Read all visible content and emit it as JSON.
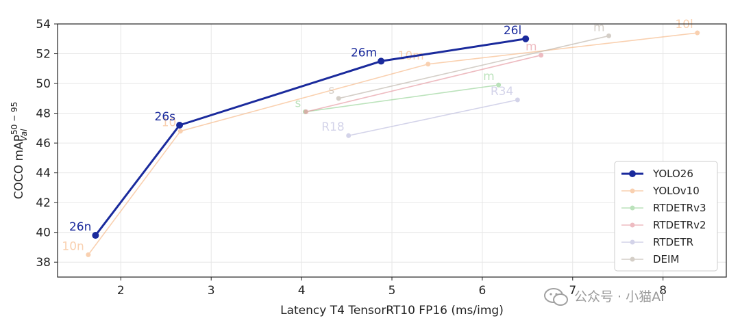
{
  "watermark": {
    "text": "公众号 · 小猫AI",
    "icon": "wechat-icon"
  },
  "chart_data": {
    "type": "line",
    "xlabel": "Latency T4 TensorRT10 FP16 (ms/img)",
    "ylabel": {
      "main": "COCO mAP",
      "sup": "50 − 95",
      "sub": "Val"
    },
    "xlim": [
      1.3,
      8.7
    ],
    "ylim": [
      37,
      54
    ],
    "xticks": [
      2,
      3,
      4,
      5,
      6,
      7,
      8
    ],
    "yticks": [
      38,
      40,
      42,
      44,
      46,
      48,
      50,
      52,
      54
    ],
    "grid": true,
    "legend_position": "bottom-right",
    "series": [
      {
        "name": "YOLO26",
        "color": "#1a2a9c",
        "width": 3,
        "alpha": 1,
        "points": [
          [
            1.72,
            39.8
          ],
          [
            2.65,
            47.2
          ],
          [
            4.88,
            51.5
          ],
          [
            6.48,
            53.0
          ]
        ],
        "labels": [
          "26n",
          "26s",
          "26m",
          "26l"
        ]
      },
      {
        "name": "YOLOv10",
        "color": "#f6b27c",
        "width": 1.6,
        "alpha": 0.6,
        "points": [
          [
            1.64,
            38.5
          ],
          [
            2.66,
            46.8
          ],
          [
            5.4,
            51.3
          ],
          [
            8.38,
            53.4
          ]
        ],
        "labels": [
          "10n",
          "10",
          "10m",
          "10l"
        ]
      },
      {
        "name": "RTDETRv3",
        "color": "#8fd08f",
        "width": 1.6,
        "alpha": 0.6,
        "points": [
          [
            4.04,
            48.1
          ],
          [
            6.18,
            49.9
          ]
        ],
        "labels": [
          "s",
          "m"
        ]
      },
      {
        "name": "RTDETRv2",
        "color": "#e38f98",
        "width": 1.6,
        "alpha": 0.6,
        "points": [
          [
            4.05,
            48.1
          ],
          [
            6.65,
            51.9
          ]
        ],
        "labels": [
          "",
          "m"
        ]
      },
      {
        "name": "RTDETR",
        "color": "#b7b7dc",
        "width": 1.6,
        "alpha": 0.6,
        "points": [
          [
            4.52,
            46.5
          ],
          [
            6.39,
            48.9
          ]
        ],
        "labels": [
          "R18",
          "R34"
        ]
      },
      {
        "name": "DEIM",
        "color": "#b8aea2",
        "width": 1.6,
        "alpha": 0.6,
        "points": [
          [
            4.41,
            49.0
          ],
          [
            7.4,
            53.2
          ]
        ],
        "labels": [
          "s",
          "m"
        ]
      }
    ]
  }
}
